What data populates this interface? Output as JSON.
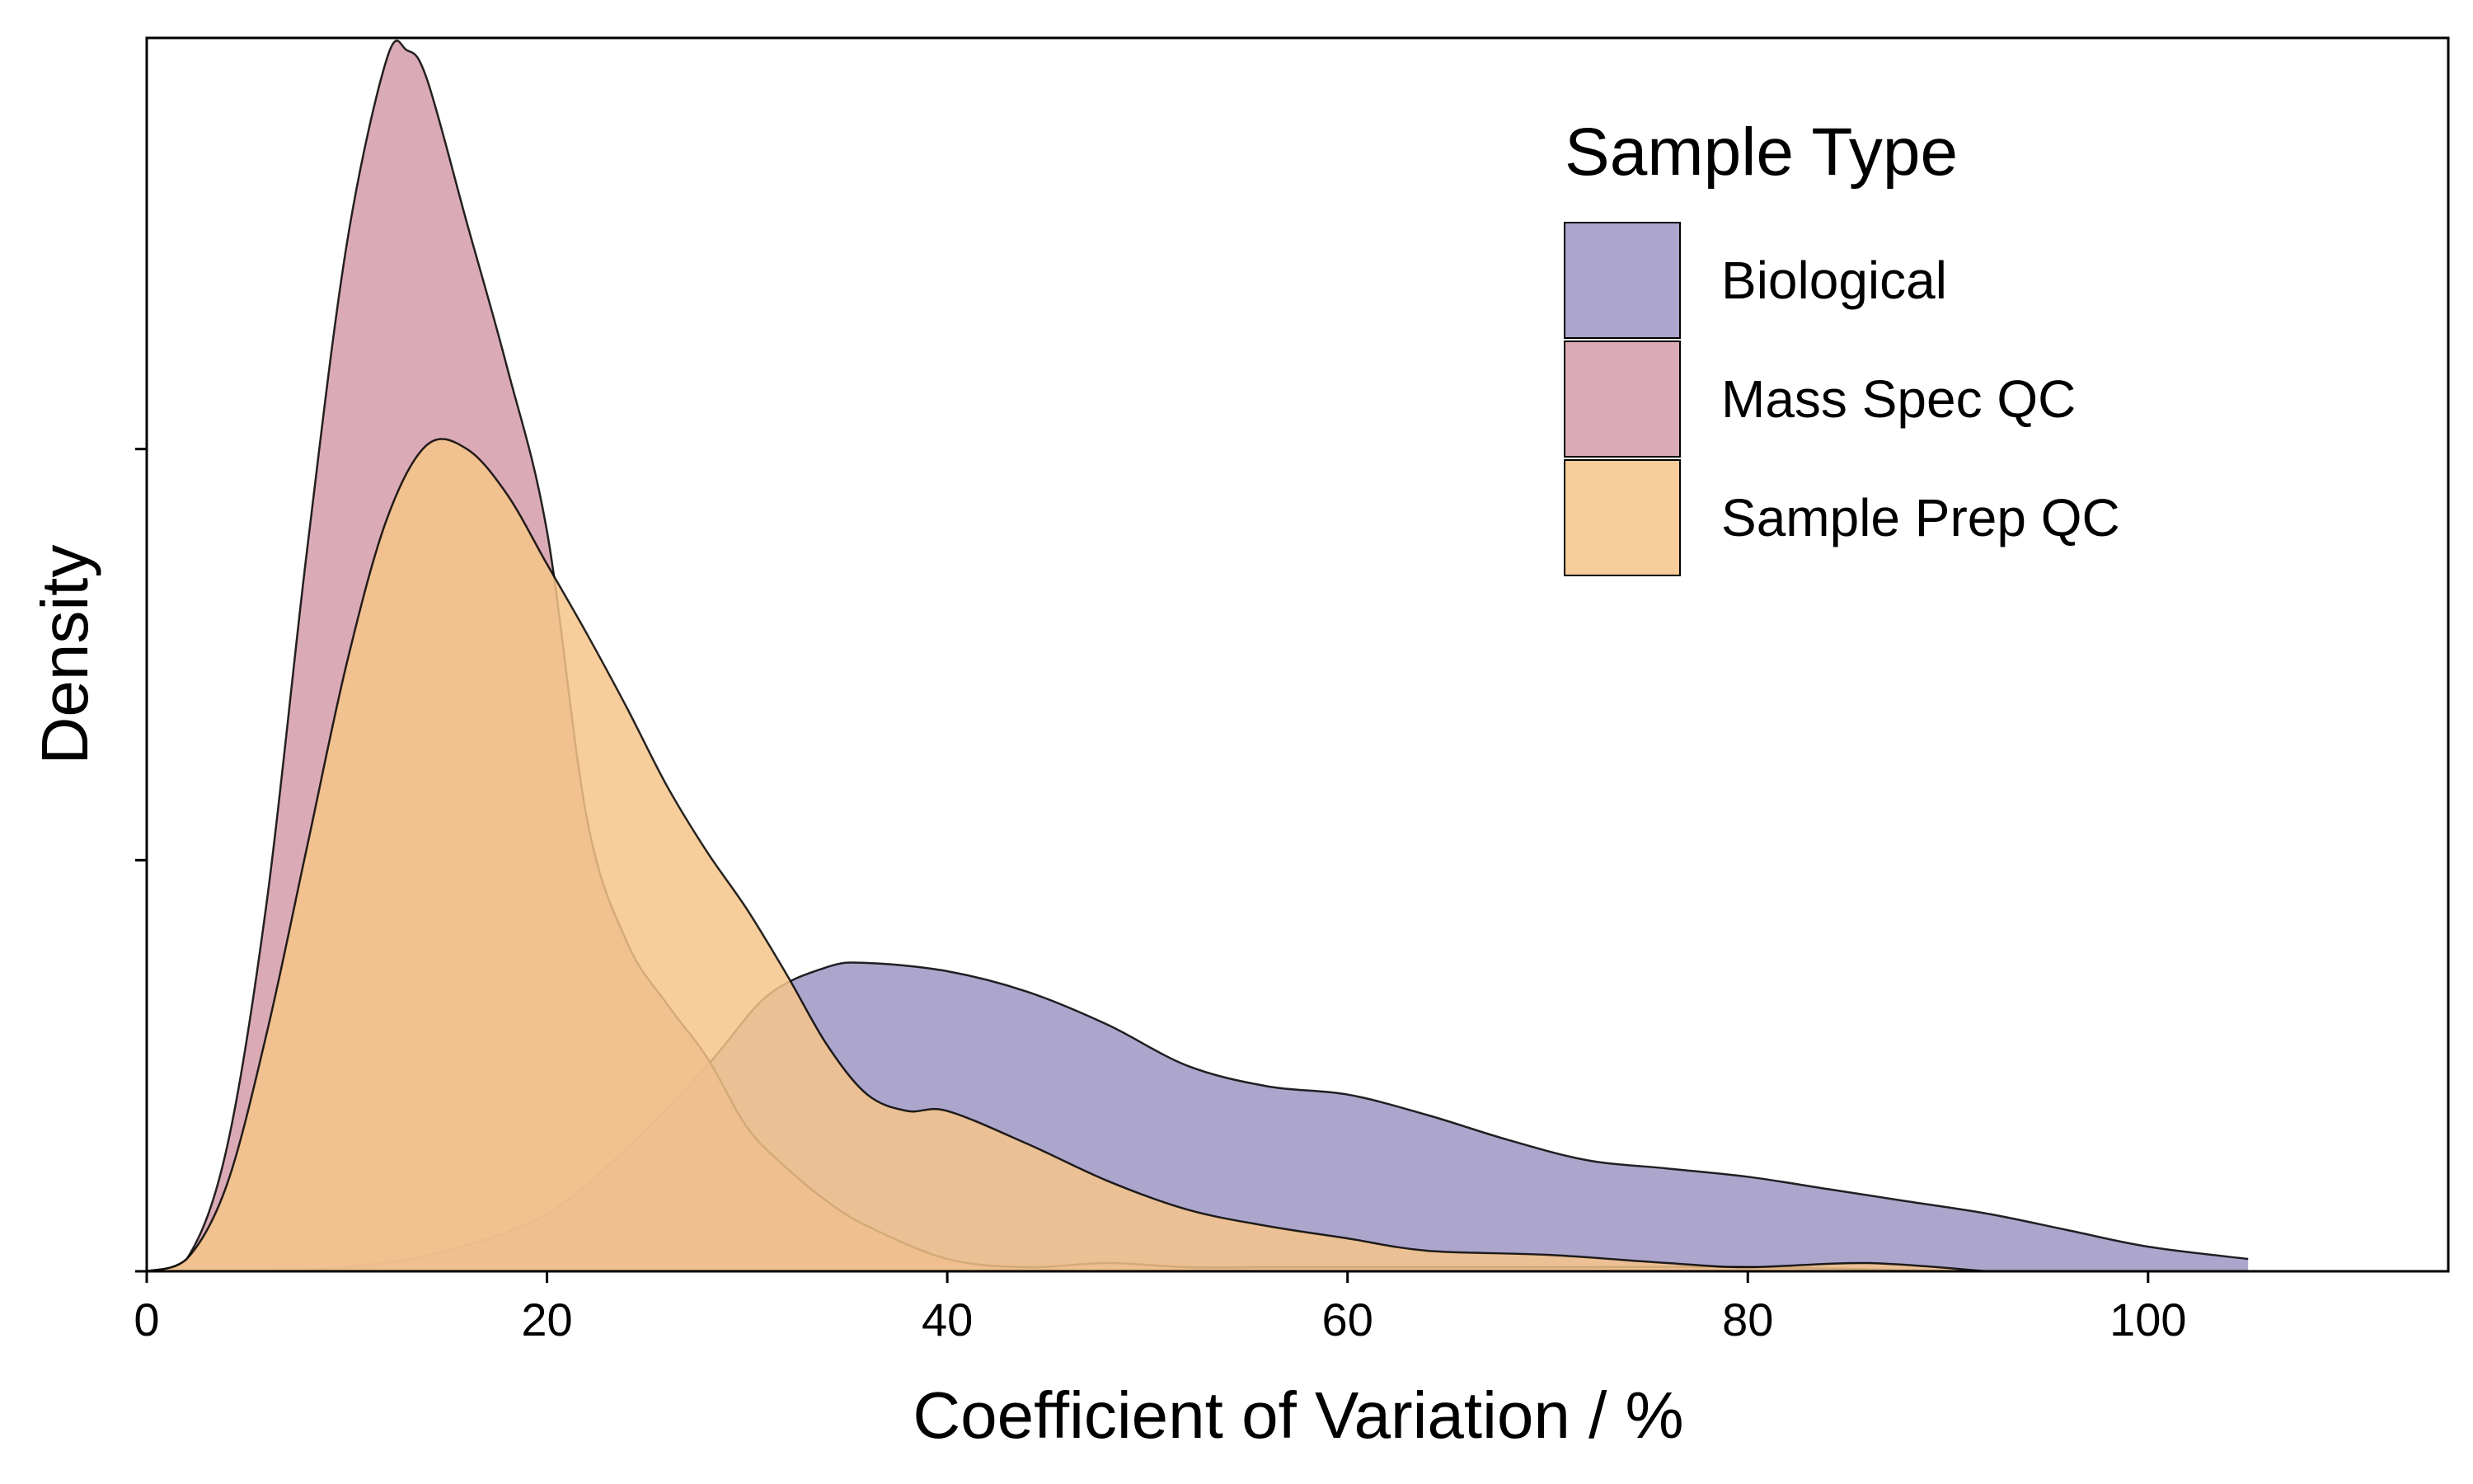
{
  "chart_data": {
    "type": "area",
    "subtype": "kde-density",
    "xlabel": "Coefficient of Variation / %",
    "ylabel": "Density",
    "xlim": [
      0,
      115
    ],
    "ylim": [
      0,
      0.03
    ],
    "x_ticks": [
      0,
      20,
      40,
      60,
      80,
      100
    ],
    "y_ticks": [
      0,
      0.01,
      0.02
    ],
    "y_tick_labels_shown": false,
    "grid": false,
    "legend": {
      "title": "Sample Type",
      "placement": "top-right"
    },
    "series": [
      {
        "name": "Biological",
        "color": "#9d96c3",
        "x": [
          0,
          5,
          10,
          15,
          20,
          24,
          28,
          31,
          34,
          36,
          40,
          44,
          48,
          52,
          56,
          60,
          64,
          68,
          72,
          76,
          80,
          84,
          88,
          92,
          96,
          100,
          105
        ],
        "y": [
          0,
          0.0,
          0.0001,
          0.0005,
          0.0014,
          0.003,
          0.005,
          0.0067,
          0.0074,
          0.0075,
          0.0073,
          0.0068,
          0.006,
          0.005,
          0.0045,
          0.0043,
          0.0038,
          0.0032,
          0.0027,
          0.0025,
          0.0023,
          0.002,
          0.0017,
          0.0014,
          0.001,
          0.0006,
          0.0003
        ]
      },
      {
        "name": "Mass Spec QC",
        "color": "#d49ca9",
        "x": [
          0,
          2,
          4,
          6,
          8,
          10,
          12,
          13,
          14,
          16,
          18,
          20,
          22,
          24,
          26,
          28,
          30,
          32,
          34,
          36,
          40,
          44,
          48,
          52,
          56,
          60,
          70,
          80,
          90
        ],
        "y": [
          0,
          0.0003,
          0.003,
          0.009,
          0.0175,
          0.025,
          0.0295,
          0.0297,
          0.029,
          0.0255,
          0.022,
          0.018,
          0.011,
          0.008,
          0.0065,
          0.0052,
          0.0035,
          0.0025,
          0.0017,
          0.0011,
          0.0003,
          0.0001,
          0.0002,
          0.0001,
          0.0001,
          0.0001,
          0.0001,
          0.0001,
          0.0
        ]
      },
      {
        "name": "Sample Prep QC",
        "color": "#f5c48a",
        "x": [
          0,
          2,
          4,
          6,
          8,
          10,
          12,
          14,
          16,
          18,
          20,
          22,
          24,
          26,
          28,
          30,
          32,
          34,
          36,
          38,
          40,
          44,
          48,
          52,
          56,
          60,
          64,
          70,
          76,
          80,
          86,
          92
        ],
        "y": [
          0,
          0.0003,
          0.0021,
          0.0058,
          0.0103,
          0.0148,
          0.0183,
          0.0201,
          0.02,
          0.0189,
          0.0172,
          0.0155,
          0.0137,
          0.0118,
          0.0102,
          0.0088,
          0.0072,
          0.0055,
          0.0043,
          0.0039,
          0.0039,
          0.0031,
          0.0022,
          0.0015,
          0.0011,
          0.0008,
          0.0005,
          0.0004,
          0.0002,
          0.0001,
          0.0002,
          0.0
        ]
      }
    ]
  }
}
